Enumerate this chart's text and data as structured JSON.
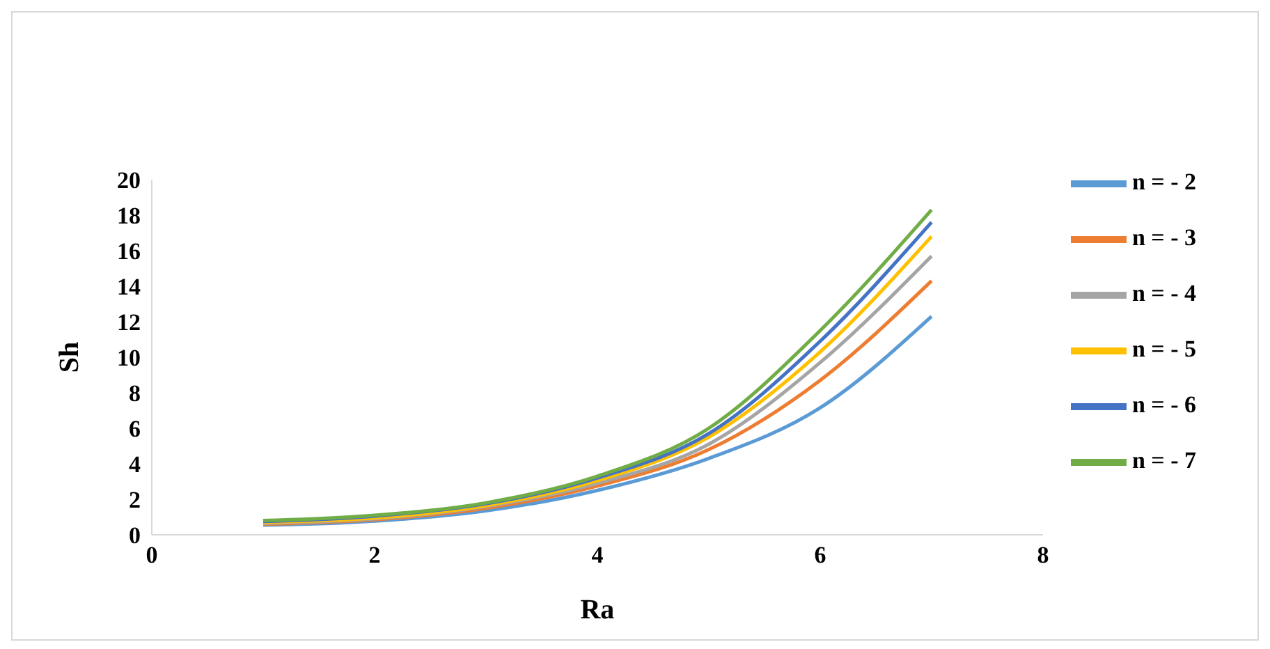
{
  "chart_data": {
    "type": "line",
    "xlabel": "Ra",
    "ylabel": "Sh",
    "x": [
      1,
      2,
      3,
      4,
      5,
      6,
      7
    ],
    "series": [
      {
        "name": "n = - 2",
        "color": "#5b9bd5",
        "values": [
          0.55,
          0.77,
          1.35,
          2.5,
          4.3,
          7.15,
          12.3
        ]
      },
      {
        "name": "n = - 3",
        "color": "#ed7d31",
        "values": [
          0.6,
          0.85,
          1.5,
          2.75,
          4.8,
          8.7,
          14.3
        ]
      },
      {
        "name": "n = - 4",
        "color": "#a5a5a5",
        "values": [
          0.65,
          0.9,
          1.6,
          2.9,
          5.1,
          9.7,
          15.7
        ]
      },
      {
        "name": "n = - 5",
        "color": "#ffc000",
        "values": [
          0.7,
          0.95,
          1.65,
          3.05,
          5.5,
          10.3,
          16.8
        ]
      },
      {
        "name": "n = - 6",
        "color": "#4472c4",
        "values": [
          0.75,
          1.05,
          1.75,
          3.2,
          5.7,
          10.9,
          17.6
        ]
      },
      {
        "name": "n = - 7",
        "color": "#70ad47",
        "values": [
          0.8,
          1.1,
          1.8,
          3.3,
          6.0,
          11.5,
          18.3
        ]
      }
    ],
    "xlim": [
      0,
      8
    ],
    "xticks": [
      0,
      2,
      4,
      6,
      8
    ],
    "ylim": [
      0,
      20
    ],
    "yticks": [
      0,
      2,
      4,
      6,
      8,
      10,
      12,
      14,
      16,
      18,
      20
    ],
    "grid": false,
    "legend": "right",
    "marker": "none",
    "line_style": "solid"
  }
}
